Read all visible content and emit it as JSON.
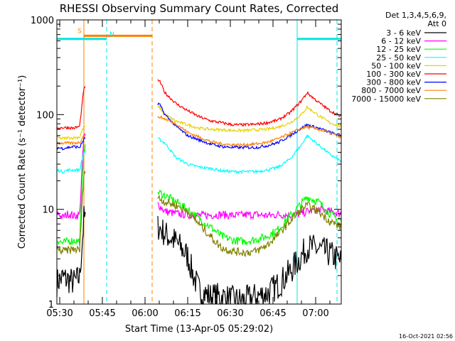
{
  "chart_data": {
    "type": "line",
    "title": "RHESSI Observing Summary Count Rates, Corrected",
    "xlabel": "Start Time (13-Apr-05 05:29:02)",
    "ylabel": "Corrected Count Rate (s⁻¹ detector⁻¹)",
    "yscale": "log",
    "ylim": [
      1,
      1000
    ],
    "xlim_minutes": [
      0,
      100
    ],
    "x_tick_labels": [
      "05:30",
      "05:45",
      "06:00",
      "06:15",
      "06:30",
      "06:45",
      "07:00"
    ],
    "x_tick_minutes": [
      1,
      16,
      31,
      46,
      61,
      76,
      91
    ],
    "y_tick_labels": [
      "1",
      "10",
      "100",
      "1000"
    ],
    "y_tick_values": [
      1,
      10,
      100,
      1000
    ],
    "legend_header": [
      "Det 1,3,4,5,6,9,",
      "Att 0"
    ],
    "legend_placement": "right",
    "timestamp": "16-Oct-2021 02:56",
    "flags": [
      {
        "label": "S",
        "color": "#ff8000",
        "start": 9.5,
        "end": 33.5,
        "yval": 680
      },
      {
        "label": "N",
        "color": "#00e5e5",
        "start": 0,
        "end": 17.5,
        "yval": 630
      },
      {
        "label": "",
        "color": "#00e5e5",
        "start": 84.5,
        "end": 100,
        "yval": 630
      }
    ],
    "event_lines": [
      {
        "x": 9.5,
        "color": "#ff8000",
        "dashed": false
      },
      {
        "x": 17.5,
        "color": "#00e5e5",
        "dashed": true
      },
      {
        "x": 33.5,
        "color": "#ff8000",
        "dashed": true
      },
      {
        "x": 84.5,
        "color": "#00e5e5",
        "dashed": false
      },
      {
        "x": 98.5,
        "color": "#00e5e5",
        "dashed": true
      }
    ],
    "series": [
      {
        "name": "3 - 6 keV",
        "color": "#000000",
        "x": [
          0,
          2,
          4,
          6,
          8,
          9.5,
          36,
          38,
          42,
          46,
          48,
          50,
          54,
          58,
          62,
          66,
          70,
          74,
          78,
          82,
          86,
          88,
          92,
          96,
          100
        ],
        "y": [
          1.7,
          1.9,
          1.8,
          1.7,
          1.9,
          8,
          6.5,
          5.5,
          4.5,
          3.2,
          2.0,
          1.4,
          1.2,
          1.2,
          1.1,
          1.1,
          1.2,
          1.3,
          1.6,
          2.2,
          3.2,
          4,
          3.8,
          3.4,
          2.8
        ]
      },
      {
        "name": "6 - 12 keV",
        "color": "#ff00ff",
        "x": [
          0,
          2,
          4,
          6,
          8,
          9.5,
          36,
          38,
          42,
          46,
          50,
          54,
          58,
          62,
          66,
          70,
          74,
          78,
          82,
          86,
          88,
          92,
          96,
          100
        ],
        "y": [
          9.3,
          8.2,
          9.0,
          8.5,
          8.8,
          60,
          11,
          9.5,
          9,
          8.8,
          8.6,
          8.7,
          8.8,
          8.6,
          8.7,
          8.8,
          8.6,
          8.8,
          8.7,
          9,
          9.5,
          10,
          9.5,
          9.0
        ]
      },
      {
        "name": "12 - 25 keV",
        "color": "#00ff00",
        "x": [
          0,
          2,
          4,
          6,
          8,
          9.5,
          36,
          38,
          42,
          46,
          50,
          54,
          58,
          62,
          66,
          70,
          74,
          78,
          82,
          86,
          88,
          92,
          96,
          100
        ],
        "y": [
          4.8,
          4.4,
          4.6,
          4.7,
          4.6,
          45,
          15,
          14,
          12,
          10,
          8,
          6.5,
          5.2,
          4.7,
          4.6,
          4.8,
          5.2,
          6.2,
          8.5,
          11.5,
          13.5,
          12,
          9,
          7.5
        ]
      },
      {
        "name": "25 - 50 keV",
        "color": "#00ffff",
        "x": [
          0,
          2,
          4,
          6,
          8,
          9.5,
          36,
          38,
          42,
          46,
          50,
          54,
          58,
          62,
          66,
          70,
          74,
          78,
          82,
          86,
          88,
          92,
          96,
          100
        ],
        "y": [
          26,
          25,
          26,
          26,
          26,
          40,
          55,
          50,
          35,
          30,
          28,
          27,
          25.5,
          25,
          25,
          25,
          26,
          28,
          34,
          48,
          60,
          48,
          38,
          32
        ]
      },
      {
        "name": "50 - 100 keV",
        "color": "#e6d200",
        "x": [
          0,
          2,
          4,
          6,
          8,
          9.5,
          36,
          38,
          42,
          46,
          50,
          54,
          58,
          62,
          66,
          70,
          74,
          78,
          82,
          86,
          88,
          92,
          96,
          100
        ],
        "y": [
          57,
          56,
          57,
          57,
          58,
          75,
          120,
          100,
          85,
          78,
          72,
          70,
          69,
          68,
          68,
          69,
          70,
          74,
          82,
          100,
          120,
          98,
          82,
          75
        ]
      },
      {
        "name": "100 - 300 keV",
        "color": "#ff0000",
        "x": [
          0,
          2,
          4,
          6,
          8,
          9.5,
          36,
          38,
          42,
          46,
          50,
          54,
          58,
          62,
          66,
          70,
          74,
          78,
          82,
          86,
          88,
          92,
          96,
          100
        ],
        "y": [
          72,
          73,
          73,
          72,
          75,
          190,
          230,
          170,
          130,
          110,
          95,
          86,
          82,
          78,
          78,
          79,
          82,
          88,
          105,
          140,
          170,
          135,
          110,
          95
        ]
      },
      {
        "name": "300 - 800 keV",
        "color": "#0000ff",
        "x": [
          0,
          2,
          4,
          6,
          8,
          9.5,
          36,
          38,
          42,
          46,
          50,
          54,
          58,
          62,
          66,
          70,
          74,
          78,
          82,
          86,
          88,
          92,
          96,
          100
        ],
        "y": [
          45,
          44,
          45,
          46,
          45,
          55,
          130,
          100,
          75,
          60,
          54,
          49,
          46,
          45,
          45,
          45,
          47,
          51,
          60,
          72,
          78,
          72,
          65,
          60
        ]
      },
      {
        "name": "800 - 7000 keV",
        "color": "#ff8000",
        "x": [
          0,
          2,
          4,
          6,
          8,
          9.5,
          36,
          38,
          42,
          46,
          50,
          54,
          58,
          62,
          66,
          70,
          74,
          78,
          82,
          86,
          88,
          92,
          96,
          100
        ],
        "y": [
          50,
          50,
          50,
          50,
          51,
          60,
          95,
          90,
          80,
          65,
          58,
          52,
          49,
          48,
          48,
          49,
          51,
          56,
          63,
          72,
          74,
          70,
          64,
          58
        ]
      },
      {
        "name": "7000 - 15000 keV",
        "color": "#808000",
        "x": [
          0,
          2,
          4,
          6,
          8,
          9.5,
          36,
          38,
          42,
          46,
          50,
          54,
          58,
          62,
          66,
          70,
          74,
          78,
          82,
          86,
          88,
          92,
          96,
          100
        ],
        "y": [
          3.8,
          3.6,
          3.7,
          3.8,
          3.7,
          25,
          13,
          12,
          11,
          9.5,
          7,
          5.2,
          3.9,
          3.6,
          3.5,
          3.6,
          4.2,
          5.5,
          7.5,
          10,
          11,
          9.5,
          7.5,
          6.5
        ]
      }
    ]
  }
}
